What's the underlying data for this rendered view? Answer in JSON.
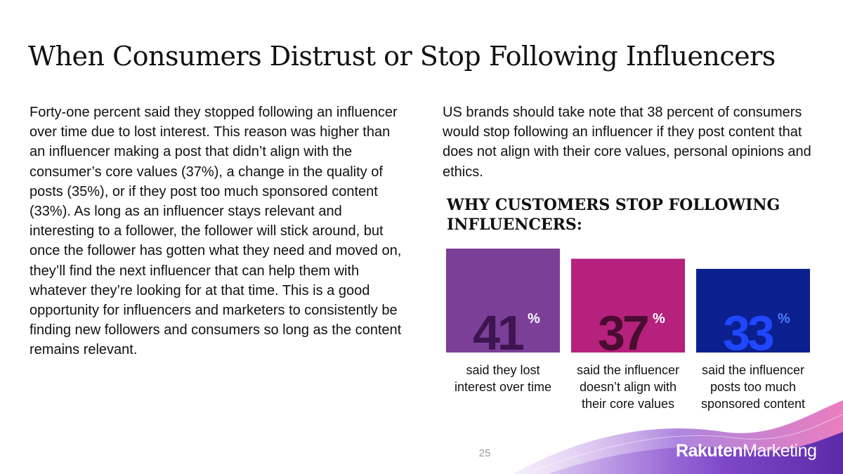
{
  "title": "When Consumers Distrust or Stop Following Influencers",
  "left_paragraph": "Forty-one percent said they stopped following an influencer over time due to lost interest. This reason was higher than an influencer making a post that didn’t align with the consumer’s core values (37%), a change in the quality of posts (35%), or if they post too much sponsored content (33%). As long as an influencer stays relevant and interesting to a follower, the follower will stick around, but once the follower has gotten what they need and moved on, they’ll find the next influencer that can help them with whatever they’re looking for at that time. This is a good opportunity for influencers and marketers to consistently be finding new followers and consumers so long as the content remains relevant.",
  "right_paragraph": "US brands should take note that 38 percent of consumers would stop following an influencer if they post content that does not align with their core values, personal opinions and ethics.",
  "chart_heading": "WHY CUSTOMERS STOP FOLLOWING INFLUENCERS:",
  "chart_data": {
    "type": "bar",
    "unit": "%",
    "values": [
      41,
      37,
      33
    ],
    "categories": [
      [
        "said they lost",
        "interest over time"
      ],
      [
        "said the influencer",
        "doesn’t align with",
        "their core values"
      ],
      [
        "said the influencer",
        "posts too much",
        "sponsored content"
      ]
    ],
    "colors": {
      "bars": [
        "#7b3f98",
        "#b5217c",
        "#0b1f8e"
      ],
      "numbers": [
        "#3d1550",
        "#4a0c30",
        "#1f47ff"
      ],
      "percent_signs": [
        "#ffffff",
        "#ffffff",
        "#4d7bff"
      ]
    }
  },
  "page_number": "25",
  "logo": {
    "bold": "Rakuten",
    "light": "Marketing"
  },
  "brand_colors": {
    "wave_purple": "#a070d8",
    "wave_pink": "#e86fb8",
    "wave_violet": "#7b44c8"
  }
}
